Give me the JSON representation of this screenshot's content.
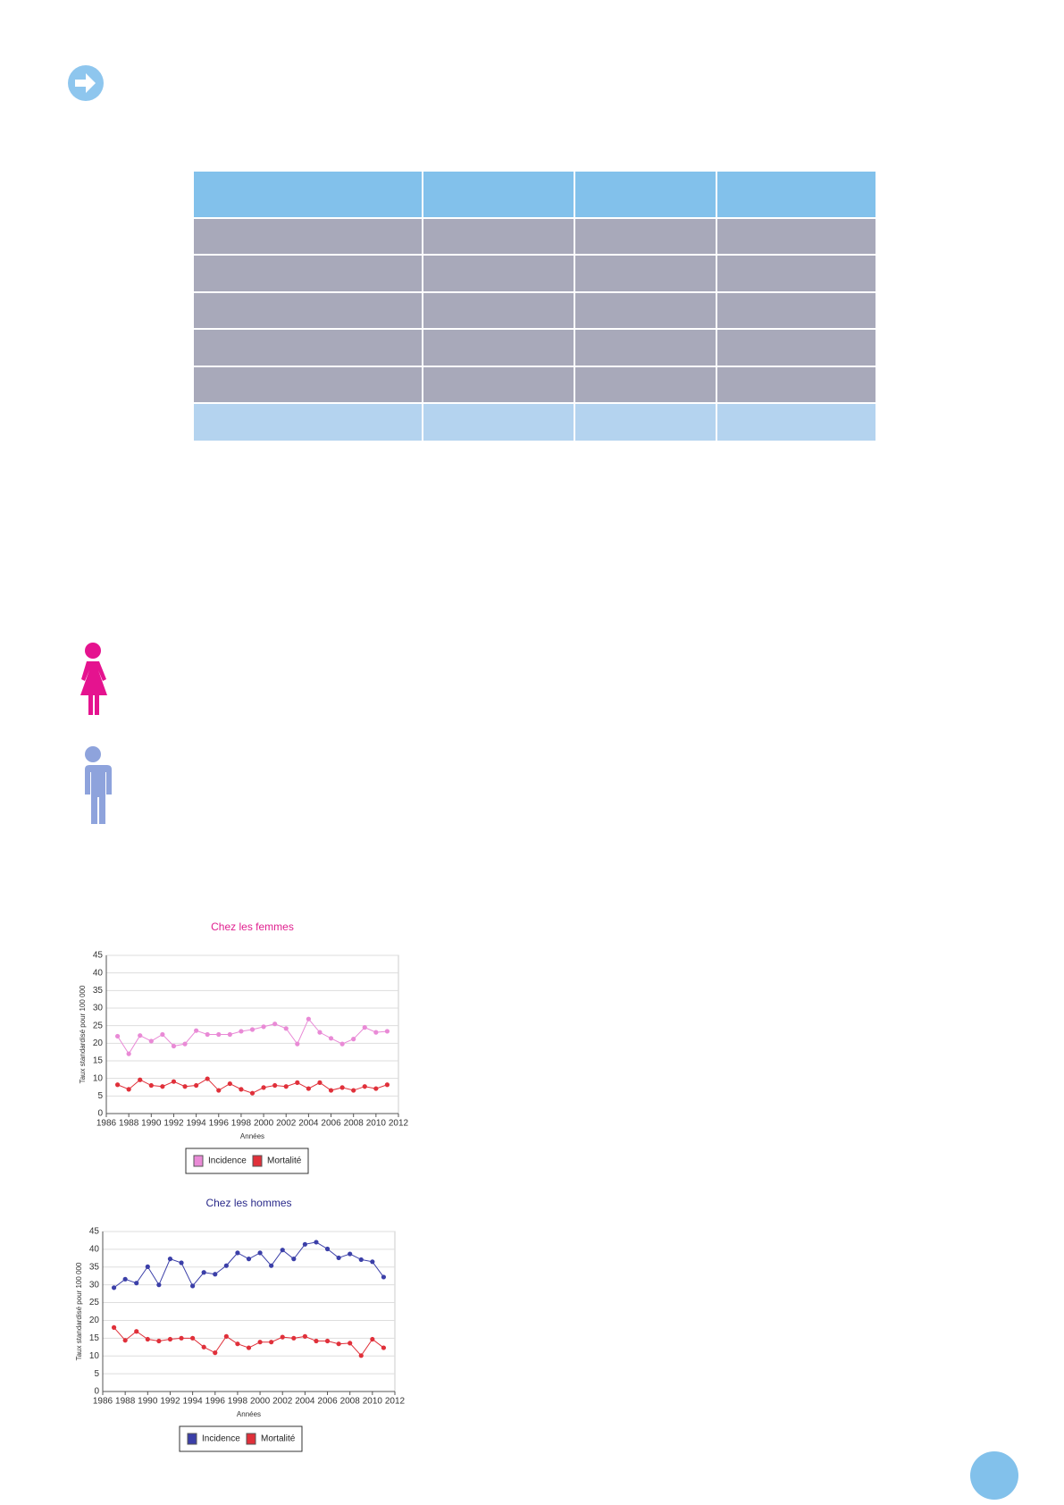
{
  "chart_data": [
    {
      "type": "line",
      "title": "Chez les femmes",
      "title_color": "#e0208f",
      "x_label": "Années",
      "y_label": "Taux standardisé pour 100 000",
      "x": [
        1987,
        1988,
        1989,
        1990,
        1991,
        1992,
        1993,
        1994,
        1995,
        1996,
        1997,
        1998,
        1999,
        2000,
        2001,
        2002,
        2003,
        2004,
        2005,
        2006,
        2007,
        2008,
        2009,
        2010,
        2011
      ],
      "series": [
        {
          "name": "Incidence",
          "color": "#e98ad6",
          "values": [
            22,
            17,
            22.2,
            20.6,
            22.5,
            19.2,
            19.8,
            23.6,
            22.5,
            22.5,
            22.5,
            23.4,
            23.9,
            24.7,
            25.5,
            24.2,
            19.8,
            26.9,
            23.1,
            21.4,
            19.8,
            21.2,
            24.5,
            23.1,
            23.4
          ]
        },
        {
          "name": "Mortalité",
          "color": "#e0303a",
          "values": [
            8.2,
            6.9,
            9.6,
            8,
            7.7,
            9.1,
            7.7,
            8,
            9.9,
            6.6,
            8.5,
            6.9,
            5.8,
            7.4,
            8,
            7.7,
            8.8,
            7.1,
            8.8,
            6.6,
            7.4,
            6.6,
            7.7,
            7.1,
            8.2
          ]
        }
      ],
      "xlim": [
        1986,
        2012
      ],
      "xticks": [
        1986,
        1988,
        1990,
        1992,
        1994,
        1996,
        1998,
        2000,
        2002,
        2004,
        2006,
        2008,
        2010,
        2012
      ],
      "ylim": [
        0,
        45
      ],
      "yticks": [
        0,
        5,
        10,
        15,
        20,
        25,
        30,
        35,
        40,
        45
      ],
      "grid": true
    },
    {
      "type": "line",
      "title": "Chez les hommes",
      "title_color": "#2a2a8a",
      "x_label": "Années",
      "y_label": "Taux standardisé pour 100 000",
      "x": [
        1987,
        1988,
        1989,
        1990,
        1991,
        1992,
        1993,
        1994,
        1995,
        1996,
        1997,
        1998,
        1999,
        2000,
        2001,
        2002,
        2003,
        2004,
        2005,
        2006,
        2007,
        2008,
        2009,
        2010,
        2011
      ],
      "series": [
        {
          "name": "Incidence",
          "color": "#3b3fa8",
          "values": [
            29.2,
            31.6,
            30.5,
            35.1,
            30,
            37.3,
            36.2,
            29.7,
            33.5,
            33,
            35.4,
            39,
            37.3,
            39,
            35.4,
            39.8,
            37.3,
            41.4,
            42,
            40.1,
            37.6,
            38.7,
            37.1,
            36.5,
            32.2
          ]
        },
        {
          "name": "Mortalité",
          "color": "#e0303a",
          "values": [
            18,
            14.4,
            16.9,
            14.7,
            14.2,
            14.7,
            15,
            15,
            12.5,
            10.9,
            15.5,
            13.4,
            12.3,
            13.9,
            13.9,
            15.3,
            15,
            15.5,
            14.2,
            14.2,
            13.4,
            13.6,
            10.1,
            14.7,
            12.3
          ]
        }
      ],
      "xlim": [
        1986,
        2012
      ],
      "xticks": [
        1986,
        1988,
        1990,
        1992,
        1994,
        1996,
        1998,
        2000,
        2002,
        2004,
        2006,
        2008,
        2010,
        2012
      ],
      "ylim": [
        0,
        45
      ],
      "yticks": [
        0,
        5,
        10,
        15,
        20,
        25,
        30,
        35,
        40,
        45
      ],
      "grid": true
    }
  ]
}
